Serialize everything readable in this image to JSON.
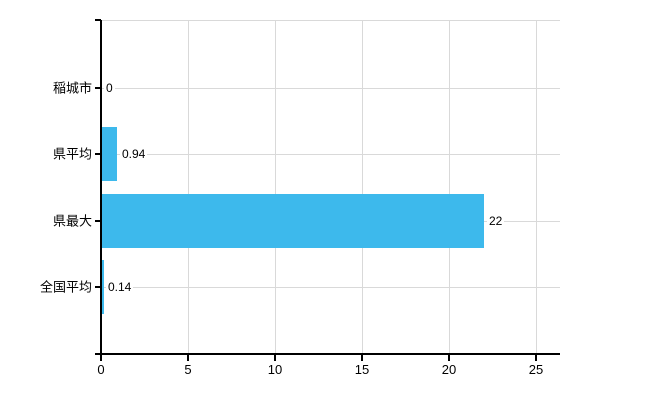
{
  "chart_data": {
    "type": "bar",
    "orientation": "horizontal",
    "categories": [
      "稲城市",
      "県平均",
      "県最大",
      "全国平均"
    ],
    "values": [
      0,
      0.94,
      22,
      0.14
    ],
    "value_labels": [
      "0",
      "0.94",
      "22",
      "0.14"
    ],
    "x_ticks": [
      0,
      5,
      10,
      15,
      20,
      25
    ],
    "xlim": [
      0,
      25
    ],
    "grid": true,
    "legend": false,
    "colors": {
      "bar": "#3db9ec",
      "grid": "#d9d9d9",
      "axis": "#000000",
      "text": "#000000",
      "background": "#ffffff"
    }
  }
}
